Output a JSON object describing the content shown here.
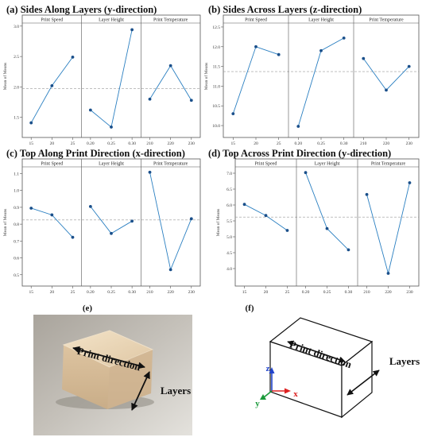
{
  "figure": {
    "labels": {
      "e": "(e)",
      "f": "(f)"
    },
    "photo": {
      "print_direction": "Print direction",
      "layers": "Layers"
    },
    "diagram": {
      "print_direction": "Print direction",
      "layers": "Layers",
      "axes": {
        "z": "z",
        "y": "y",
        "x": "x"
      },
      "colors": {
        "z": "#2244cc",
        "y": "#1a9a3a",
        "x": "#dd2222"
      }
    },
    "mean_line_color": "#999999",
    "series_color": "#2a7fc1",
    "marker_color": "#1a4f8a"
  },
  "chart_data": [
    {
      "type": "line",
      "title": "(a) Sides Along Layers (y-direction)",
      "ylabel": "Mean of Means",
      "ylim": [
        1.3,
        3.05
      ],
      "yticks": [
        1.5,
        2.0,
        2.5,
        3.0
      ],
      "ytick_labels": [
        "1.5",
        "2.0",
        "2.5",
        "3.0"
      ],
      "overall_mean": 1.97,
      "facets": [
        {
          "name": "Print Speed",
          "categories": [
            "15",
            "20",
            "25"
          ],
          "values": [
            1.41,
            2.02,
            2.49
          ]
        },
        {
          "name": "Layer Height",
          "categories": [
            "0.20",
            "0.25",
            "0.30"
          ],
          "values": [
            1.62,
            1.34,
            2.94
          ]
        },
        {
          "name": "Print Temperature",
          "categories": [
            "210",
            "220",
            "230"
          ],
          "values": [
            1.8,
            2.35,
            1.78
          ]
        }
      ]
    },
    {
      "type": "line",
      "title": "(b) Sides Across Layers (z-direction)",
      "ylabel": "Mean of Means",
      "ylim": [
        9.9,
        12.6
      ],
      "yticks": [
        10.0,
        10.5,
        11.0,
        11.5,
        12.0,
        12.5
      ],
      "ytick_labels": [
        "10.0",
        "10.5",
        "11.0",
        "11.5",
        "12.0",
        "12.5"
      ],
      "overall_mean": 11.37,
      "facets": [
        {
          "name": "Print Speed",
          "categories": [
            "15",
            "20",
            "25"
          ],
          "values": [
            10.3,
            12.0,
            11.8
          ]
        },
        {
          "name": "Layer Height",
          "categories": [
            "0.20",
            "0.25",
            "0.30"
          ],
          "values": [
            9.98,
            11.9,
            12.22
          ]
        },
        {
          "name": "Print Temperature",
          "categories": [
            "210",
            "220",
            "230"
          ],
          "values": [
            11.7,
            10.9,
            11.5
          ]
        }
      ]
    },
    {
      "type": "line",
      "title": "(c) Top Along Print Direction (x-direction)",
      "ylabel": "Mean of Means",
      "ylim": [
        0.48,
        1.14
      ],
      "yticks": [
        0.5,
        0.6,
        0.7,
        0.8,
        0.9,
        1.0,
        1.1
      ],
      "ytick_labels": [
        "0.5",
        "0.6",
        "0.7",
        "0.8",
        "0.9",
        "1.0",
        "1.1"
      ],
      "overall_mean": 0.825,
      "facets": [
        {
          "name": "Print Speed",
          "categories": [
            "15",
            "20",
            "25"
          ],
          "values": [
            0.895,
            0.855,
            0.722
          ]
        },
        {
          "name": "Layer Height",
          "categories": [
            "0.20",
            "0.25",
            "0.30"
          ],
          "values": [
            0.905,
            0.745,
            0.818
          ]
        },
        {
          "name": "Print Temperature",
          "categories": [
            "210",
            "220",
            "230"
          ],
          "values": [
            1.108,
            0.53,
            0.832
          ]
        }
      ]
    },
    {
      "type": "line",
      "title": "(d) Top Across Print Direction (y-direction)",
      "ylabel": "Mean of Means",
      "ylim": [
        3.7,
        7.2
      ],
      "yticks": [
        4.0,
        4.5,
        5.0,
        5.5,
        6.0,
        6.5,
        7.0
      ],
      "ytick_labels": [
        "4.0",
        "4.5",
        "5.0",
        "5.5",
        "6.0",
        "6.5",
        "7.0"
      ],
      "overall_mean": 5.62,
      "facets": [
        {
          "name": "Print Speed",
          "categories": [
            "15",
            "20",
            "25"
          ],
          "values": [
            6.02,
            5.67,
            5.2
          ]
        },
        {
          "name": "Layer Height",
          "categories": [
            "0.20",
            "0.25",
            "0.30"
          ],
          "values": [
            7.02,
            5.26,
            4.59
          ]
        },
        {
          "name": "Print Temperature",
          "categories": [
            "210",
            "220",
            "230"
          ],
          "values": [
            6.33,
            3.85,
            6.7
          ]
        }
      ]
    }
  ]
}
